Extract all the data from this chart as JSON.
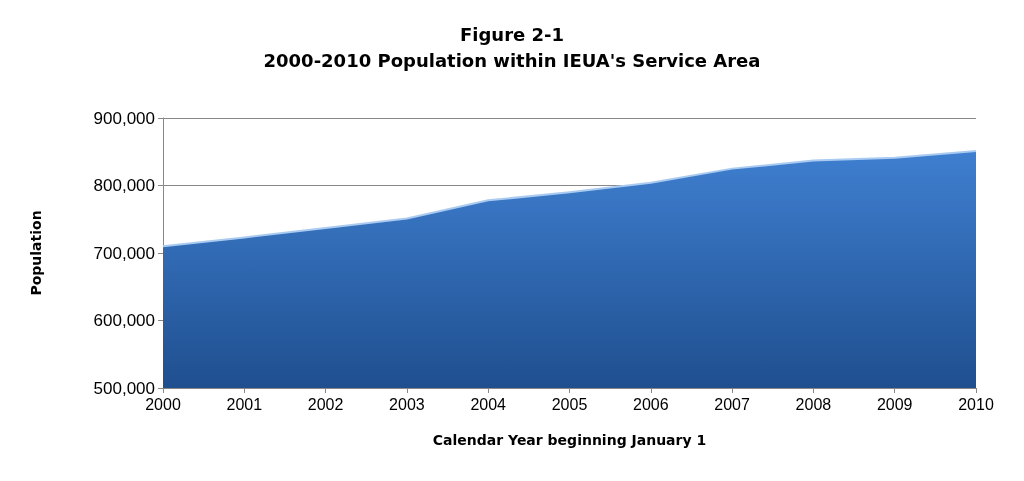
{
  "chart_data": {
    "type": "area",
    "title": "Figure 2-1\n2000-2010 Population within IEUA's Service Area",
    "xlabel": "Calendar Year beginning January 1",
    "ylabel": "Population",
    "categories": [
      "2000",
      "2001",
      "2002",
      "2003",
      "2004",
      "2005",
      "2006",
      "2007",
      "2008",
      "2009",
      "2010"
    ],
    "series": [
      {
        "color": "#3f7fd0",
        "values": [
          710000,
          723000,
          737000,
          751000,
          778000,
          790000,
          804000,
          825000,
          837000,
          841000,
          851000
        ]
      }
    ],
    "ylim": [
      500000,
      900000
    ],
    "yticks": [
      {
        "value": 500000,
        "label": "500,000"
      },
      {
        "value": 600000,
        "label": "600,000"
      },
      {
        "value": 700000,
        "label": "700,000"
      },
      {
        "value": 800000,
        "label": "800,000"
      },
      {
        "value": 900000,
        "label": "900,000"
      }
    ],
    "grid": "y",
    "marker": "none"
  }
}
